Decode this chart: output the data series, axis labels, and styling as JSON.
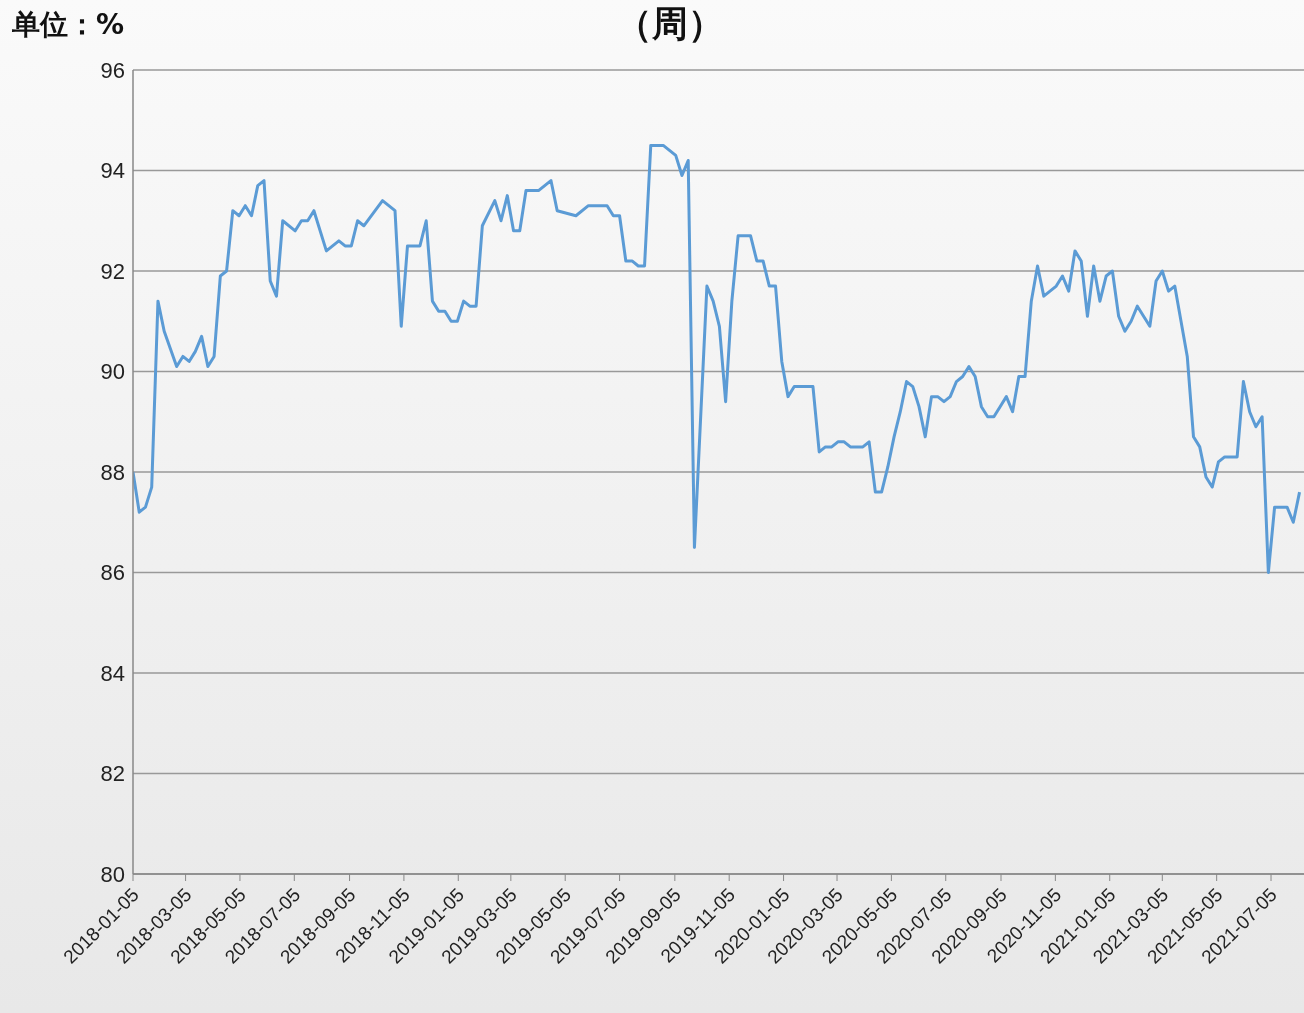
{
  "chart_data": {
    "type": "line",
    "title": "（周）",
    "ylabel": "单位：%",
    "x": [
      "2018-01-05",
      "2018-01-12",
      "2018-01-19",
      "2018-01-26",
      "2018-02-02",
      "2018-02-09",
      "2018-02-23",
      "2018-03-02",
      "2018-03-09",
      "2018-03-16",
      "2018-03-23",
      "2018-03-30",
      "2018-04-06",
      "2018-04-13",
      "2018-04-20",
      "2018-04-27",
      "2018-05-04",
      "2018-05-11",
      "2018-05-18",
      "2018-05-25",
      "2018-06-01",
      "2018-06-08",
      "2018-06-15",
      "2018-06-22",
      "2018-07-06",
      "2018-07-13",
      "2018-07-20",
      "2018-07-27",
      "2018-08-10",
      "2018-08-17",
      "2018-08-24",
      "2018-08-31",
      "2018-09-07",
      "2018-09-14",
      "2018-09-21",
      "2018-10-12",
      "2018-10-26",
      "2018-11-02",
      "2018-11-09",
      "2018-11-23",
      "2018-11-30",
      "2018-12-07",
      "2018-12-14",
      "2018-12-21",
      "2018-12-28",
      "2019-01-04",
      "2019-01-11",
      "2019-01-18",
      "2019-01-25",
      "2019-02-01",
      "2019-02-15",
      "2019-02-22",
      "2019-03-01",
      "2019-03-08",
      "2019-03-15",
      "2019-03-22",
      "2019-03-29",
      "2019-04-05",
      "2019-04-19",
      "2019-04-26",
      "2019-05-17",
      "2019-05-31",
      "2019-06-21",
      "2019-06-28",
      "2019-07-05",
      "2019-07-12",
      "2019-07-19",
      "2019-07-26",
      "2019-08-02",
      "2019-08-09",
      "2019-08-16",
      "2019-08-23",
      "2019-09-06",
      "2019-09-13",
      "2019-09-20",
      "2019-09-27",
      "2019-10-11",
      "2019-10-18",
      "2019-10-25",
      "2019-11-01",
      "2019-11-08",
      "2019-11-15",
      "2019-11-22",
      "2019-11-29",
      "2019-12-06",
      "2019-12-13",
      "2019-12-20",
      "2019-12-27",
      "2020-01-03",
      "2020-01-10",
      "2020-01-17",
      "2020-02-07",
      "2020-02-14",
      "2020-02-21",
      "2020-02-28",
      "2020-03-06",
      "2020-03-13",
      "2020-03-20",
      "2020-03-27",
      "2020-04-03",
      "2020-04-10",
      "2020-04-17",
      "2020-04-24",
      "2020-05-01",
      "2020-05-08",
      "2020-05-15",
      "2020-05-22",
      "2020-05-29",
      "2020-06-05",
      "2020-06-12",
      "2020-06-19",
      "2020-06-26",
      "2020-07-03",
      "2020-07-10",
      "2020-07-17",
      "2020-07-24",
      "2020-07-31",
      "2020-08-07",
      "2020-08-14",
      "2020-08-21",
      "2020-08-28",
      "2020-09-04",
      "2020-09-11",
      "2020-09-18",
      "2020-09-25",
      "2020-10-02",
      "2020-10-09",
      "2020-10-16",
      "2020-10-23",
      "2020-10-30",
      "2020-11-06",
      "2020-11-13",
      "2020-11-20",
      "2020-11-27",
      "2020-12-04",
      "2020-12-11",
      "2020-12-18",
      "2020-12-25",
      "2021-01-01",
      "2021-01-08",
      "2021-01-15",
      "2021-01-22",
      "2021-01-29",
      "2021-02-05",
      "2021-02-19",
      "2021-02-26",
      "2021-03-05",
      "2021-03-12",
      "2021-03-19",
      "2021-04-02",
      "2021-04-09",
      "2021-04-16",
      "2021-04-23",
      "2021-04-30",
      "2021-05-07",
      "2021-05-14",
      "2021-05-21",
      "2021-05-28",
      "2021-06-04",
      "2021-06-11",
      "2021-06-18",
      "2021-06-25",
      "2021-07-02",
      "2021-07-09",
      "2021-07-16",
      "2021-07-23",
      "2021-07-30",
      "2021-08-06"
    ],
    "series": [
      {
        "color": "#5b9bd5",
        "values": [
          88.0,
          87.2,
          87.3,
          87.7,
          91.4,
          90.8,
          90.1,
          90.3,
          90.2,
          90.4,
          90.7,
          90.1,
          90.3,
          91.9,
          92.0,
          93.2,
          93.1,
          93.3,
          93.1,
          93.7,
          93.8,
          91.8,
          91.5,
          93.0,
          92.8,
          93.0,
          93.0,
          93.2,
          92.4,
          92.5,
          92.6,
          92.5,
          92.5,
          93.0,
          92.9,
          93.4,
          93.2,
          90.9,
          92.5,
          92.5,
          93.0,
          91.4,
          91.2,
          91.2,
          91.0,
          91.0,
          91.4,
          91.3,
          91.3,
          92.9,
          93.4,
          93.0,
          93.5,
          92.8,
          92.8,
          93.6,
          93.6,
          93.6,
          93.8,
          93.2,
          93.1,
          93.3,
          93.3,
          93.1,
          93.1,
          92.2,
          92.2,
          92.1,
          92.1,
          94.5,
          94.5,
          94.5,
          94.3,
          93.9,
          94.2,
          86.5,
          91.7,
          91.4,
          90.9,
          89.4,
          91.4,
          92.7,
          92.7,
          92.7,
          92.2,
          92.2,
          91.7,
          91.7,
          90.2,
          89.5,
          89.7,
          89.7,
          88.4,
          88.5,
          88.5,
          88.6,
          88.6,
          88.5,
          88.5,
          88.5,
          88.6,
          87.6,
          87.6,
          88.1,
          88.7,
          89.2,
          89.8,
          89.7,
          89.3,
          88.7,
          89.5,
          89.5,
          89.4,
          89.5,
          89.8,
          89.9,
          90.1,
          89.9,
          89.3,
          89.1,
          89.1,
          89.3,
          89.5,
          89.2,
          89.9,
          89.9,
          91.4,
          92.1,
          91.5,
          91.6,
          91.7,
          91.9,
          91.6,
          92.4,
          92.2,
          91.1,
          92.1,
          91.4,
          91.9,
          92.0,
          91.1,
          90.8,
          91.0,
          91.3,
          90.9,
          91.8,
          92.0,
          91.6,
          91.7,
          90.3,
          88.7,
          88.5,
          87.9,
          87.7,
          88.2,
          88.3,
          88.3,
          88.3,
          89.8,
          89.2,
          88.9,
          89.1,
          86.0,
          87.3,
          87.3,
          87.3,
          87.0,
          87.6
        ]
      }
    ],
    "xlim": [
      "2018-01-05",
      "2021-08-11"
    ],
    "xticks": [
      "2018-01-05",
      "2018-03-05",
      "2018-05-05",
      "2018-07-05",
      "2018-09-05",
      "2018-11-05",
      "2019-01-05",
      "2019-03-05",
      "2019-05-05",
      "2019-07-05",
      "2019-09-05",
      "2019-11-05",
      "2020-01-05",
      "2020-03-05",
      "2020-05-05",
      "2020-07-05",
      "2020-09-05",
      "2020-11-05",
      "2021-01-05",
      "2021-03-05",
      "2021-05-05",
      "2021-07-05"
    ],
    "ylim": [
      80,
      96
    ],
    "yticks": [
      80,
      82,
      84,
      86,
      88,
      90,
      92,
      94,
      96
    ],
    "grid": "y",
    "legend": false,
    "marker": "none",
    "line_style": "solid"
  }
}
